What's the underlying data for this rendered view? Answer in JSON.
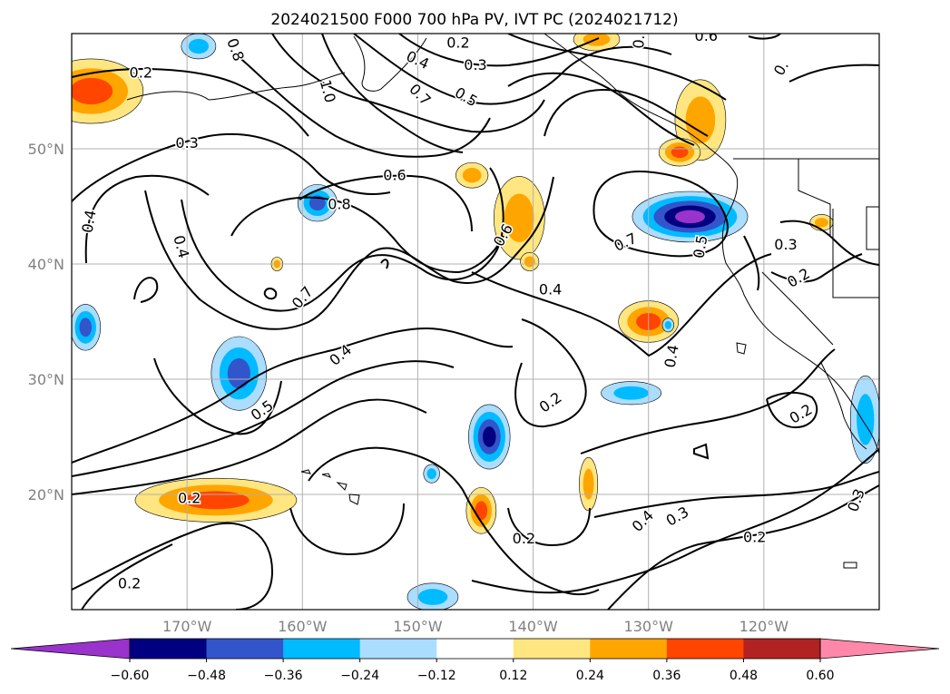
{
  "chart_data": {
    "type": "contour-map",
    "title": "2024021500 F000 700 hPa PV, IVT PC (2024021712)",
    "xlim": [
      -180,
      -110
    ],
    "ylim": [
      10,
      60
    ],
    "x_ticks": [
      {
        "lon": -170,
        "label": "170°W"
      },
      {
        "lon": -160,
        "label": "160°W"
      },
      {
        "lon": -150,
        "label": "150°W"
      },
      {
        "lon": -140,
        "label": "140°W"
      },
      {
        "lon": -130,
        "label": "130°W"
      },
      {
        "lon": -120,
        "label": "120°W"
      }
    ],
    "y_ticks": [
      {
        "lat": 20,
        "label": "20°N"
      },
      {
        "lat": 30,
        "label": "30°N"
      },
      {
        "lat": 40,
        "label": "40°N"
      },
      {
        "lat": 50,
        "label": "50°N"
      }
    ],
    "grid": true,
    "colorbar": {
      "levels": [
        -0.6,
        -0.48,
        -0.36,
        -0.24,
        -0.12,
        0.12,
        0.24,
        0.36,
        0.48,
        0.6
      ],
      "labels": [
        "−0.60",
        "−0.48",
        "−0.36",
        "−0.24",
        "−0.12",
        "0.12",
        "0.24",
        "0.36",
        "0.48",
        "0.60"
      ],
      "colors": [
        "#9933cc",
        "#000080",
        "#3355cc",
        "#00bbff",
        "#aaddff",
        "#ffffff",
        "#ffe680",
        "#ffa500",
        "#ff4500",
        "#b22222",
        "#ff88aa"
      ],
      "extend": "both"
    },
    "contour_labels": [
      {
        "text": "0.2",
        "lon": -174,
        "lat": 56.6,
        "rot": 0
      },
      {
        "text": "0.3",
        "lon": -170,
        "lat": 50.5,
        "rot": 0
      },
      {
        "text": "0.4",
        "lon": -178.5,
        "lat": 43.7,
        "rot": -80
      },
      {
        "text": "0.4",
        "lon": -170.5,
        "lat": 41.5,
        "rot": 75
      },
      {
        "text": "0.8",
        "lon": -165.8,
        "lat": 58.6,
        "rot": 70
      },
      {
        "text": "1.0",
        "lon": -157.8,
        "lat": 55,
        "rot": 75
      },
      {
        "text": "0.4",
        "lon": -150,
        "lat": 57.7,
        "rot": 25
      },
      {
        "text": "0.7",
        "lon": -149.8,
        "lat": 54.7,
        "rot": 45
      },
      {
        "text": "0.5",
        "lon": -145.8,
        "lat": 54.5,
        "rot": 30
      },
      {
        "text": "0.2",
        "lon": -146.5,
        "lat": 59.2,
        "rot": 0
      },
      {
        "text": "0.3",
        "lon": -145,
        "lat": 57.3,
        "rot": 0
      },
      {
        "text": "0.6",
        "lon": -152,
        "lat": 47.7,
        "rot": 0
      },
      {
        "text": "0.8",
        "lon": -156.8,
        "lat": 45.2,
        "rot": 0
      },
      {
        "text": "0.6",
        "lon": -142.6,
        "lat": 42.5,
        "rot": -60
      },
      {
        "text": "0.7",
        "lon": -160,
        "lat": 37.1,
        "rot": -50
      },
      {
        "text": "0.4",
        "lon": -156.7,
        "lat": 32.1,
        "rot": -40
      },
      {
        "text": "0.5",
        "lon": -163.5,
        "lat": 27.3,
        "rot": -35
      },
      {
        "text": "0.2",
        "lon": -138.5,
        "lat": 28,
        "rot": -35
      },
      {
        "text": "0.6",
        "lon": -130.8,
        "lat": 59.7,
        "rot": -85
      },
      {
        "text": "0.6",
        "lon": -125,
        "lat": 59.8,
        "rot": 0
      },
      {
        "text": "0.",
        "lon": -118.5,
        "lat": 57,
        "rot": -60
      },
      {
        "text": "0.7",
        "lon": -132,
        "lat": 41.9,
        "rot": -25
      },
      {
        "text": "0.5",
        "lon": -125.5,
        "lat": 41.5,
        "rot": -80
      },
      {
        "text": "0.3",
        "lon": -118.1,
        "lat": 41.7,
        "rot": 0
      },
      {
        "text": "0.2",
        "lon": -117,
        "lat": 38.8,
        "rot": -30
      },
      {
        "text": "0.4",
        "lon": -138.5,
        "lat": 37.8,
        "rot": 0
      },
      {
        "text": "0.2",
        "lon": -116.8,
        "lat": 27,
        "rot": -30
      },
      {
        "text": "0.3",
        "lon": -112,
        "lat": 19.5,
        "rot": -70
      },
      {
        "text": "0.4",
        "lon": -128,
        "lat": 32,
        "rot": -80
      },
      {
        "text": "0.4",
        "lon": -130.5,
        "lat": 17.7,
        "rot": -45
      },
      {
        "text": "0.3",
        "lon": -127.5,
        "lat": 18.1,
        "rot": -30
      },
      {
        "text": "0.2",
        "lon": -120.8,
        "lat": 16.3,
        "rot": 0
      },
      {
        "text": "0.2",
        "lon": -140.8,
        "lat": 16.2,
        "rot": 0
      },
      {
        "text": "0.2",
        "lon": -169.8,
        "lat": 19.7,
        "rot": 0
      },
      {
        "text": "0.2",
        "lon": -175,
        "lat": 12.3,
        "rot": 0
      }
    ],
    "anomaly_blobs": [
      {
        "lon": -178.3,
        "lat": 55,
        "rx": 4.5,
        "ry": 2.8,
        "level": 0.36
      },
      {
        "lon": -169,
        "lat": 58.9,
        "rx": 1.5,
        "ry": 1.1,
        "level": -0.24
      },
      {
        "lon": -134.5,
        "lat": 59.5,
        "rx": 2,
        "ry": 1,
        "level": 0.24
      },
      {
        "lon": -125.5,
        "lat": 52.5,
        "rx": 2.2,
        "ry": 3.5,
        "level": 0.24
      },
      {
        "lon": -127.3,
        "lat": 49.7,
        "rx": 1.8,
        "ry": 1.2,
        "level": 0.36
      },
      {
        "lon": -126.4,
        "lat": 44.1,
        "rx": 5,
        "ry": 2.2,
        "level": -0.6
      },
      {
        "lon": -141.2,
        "lat": 44,
        "rx": 2.2,
        "ry": 3.6,
        "level": 0.24
      },
      {
        "lon": -145.3,
        "lat": 47.7,
        "rx": 1.4,
        "ry": 1.1,
        "level": 0.24
      },
      {
        "lon": -158.7,
        "lat": 45.3,
        "rx": 1.7,
        "ry": 1.6,
        "level": -0.36
      },
      {
        "lon": -130,
        "lat": 35,
        "rx": 2.6,
        "ry": 1.8,
        "level": 0.36
      },
      {
        "lon": -178.8,
        "lat": 34.5,
        "rx": 1.3,
        "ry": 2,
        "level": -0.36
      },
      {
        "lon": -165.5,
        "lat": 30.5,
        "rx": 2.4,
        "ry": 3.2,
        "level": -0.36
      },
      {
        "lon": -131.5,
        "lat": 28.8,
        "rx": 2.6,
        "ry": 1,
        "level": -0.24
      },
      {
        "lon": -143.8,
        "lat": 25,
        "rx": 1.8,
        "ry": 2.8,
        "level": -0.48
      },
      {
        "lon": -111.2,
        "lat": 26.5,
        "rx": 1.3,
        "ry": 3.8,
        "level": -0.24
      },
      {
        "lon": -148.8,
        "lat": 21.8,
        "rx": 0.7,
        "ry": 0.8,
        "level": -0.24
      },
      {
        "lon": -135.2,
        "lat": 20.9,
        "rx": 0.8,
        "ry": 2.3,
        "level": 0.24
      },
      {
        "lon": -144.5,
        "lat": 18.6,
        "rx": 1.3,
        "ry": 2,
        "level": 0.36
      },
      {
        "lon": -167.5,
        "lat": 19.5,
        "rx": 7,
        "ry": 1.9,
        "level": 0.36
      },
      {
        "lon": -148.7,
        "lat": 11.1,
        "rx": 2.2,
        "ry": 1.2,
        "level": -0.24
      },
      {
        "lon": -128.3,
        "lat": 34.7,
        "rx": 0.5,
        "ry": 0.6,
        "level": -0.24
      },
      {
        "lon": -115,
        "lat": 43.6,
        "rx": 1,
        "ry": 0.7,
        "level": 0.24
      },
      {
        "lon": -162.2,
        "lat": 40,
        "rx": 0.5,
        "ry": 0.6,
        "level": 0.24
      },
      {
        "lon": -140.3,
        "lat": 40.2,
        "rx": 0.8,
        "ry": 0.8,
        "level": 0.24
      }
    ]
  }
}
